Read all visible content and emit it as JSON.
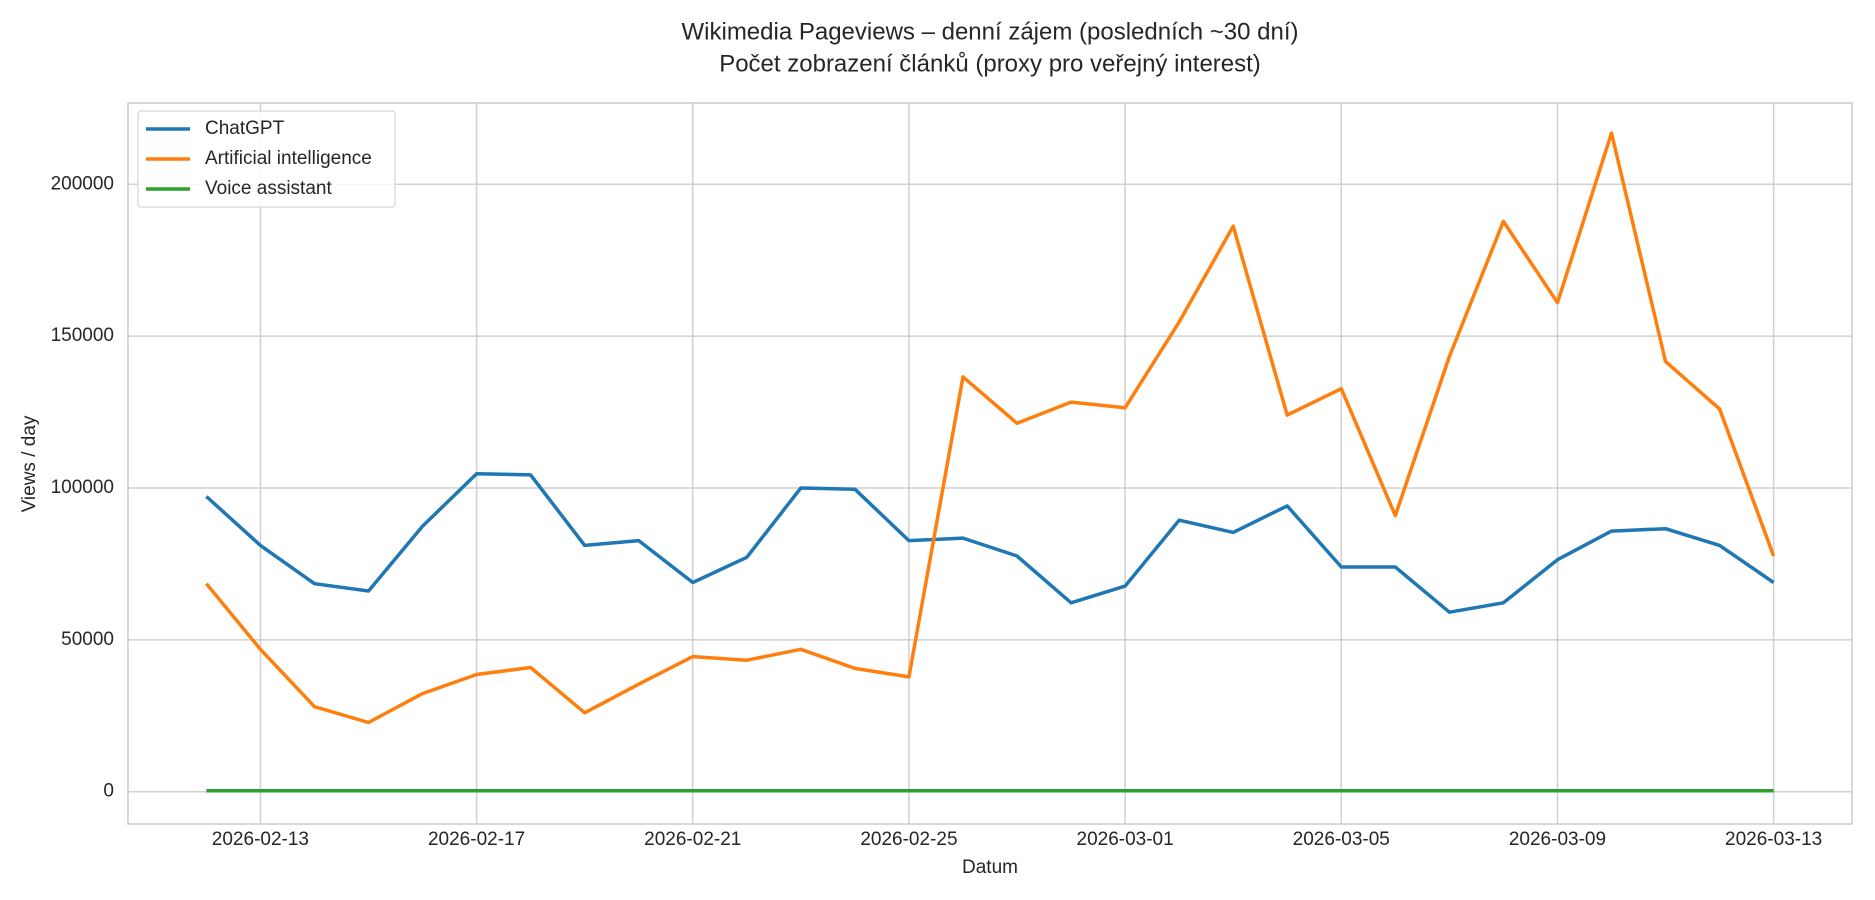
{
  "chart_data": {
    "type": "line",
    "title": "Wikimedia Pageviews – denní zájem (posledních ~30 dní)",
    "subtitle": "Počet zobrazení článků (proxy pro veřejný interest)",
    "x_label": "Datum",
    "y_label": "Views / day",
    "x": [
      "2026-02-12",
      "2026-02-13",
      "2026-02-14",
      "2026-02-15",
      "2026-02-16",
      "2026-02-17",
      "2026-02-18",
      "2026-02-19",
      "2026-02-20",
      "2026-02-21",
      "2026-02-22",
      "2026-02-23",
      "2026-02-24",
      "2026-02-25",
      "2026-02-26",
      "2026-02-27",
      "2026-02-28",
      "2026-03-01",
      "2026-03-02",
      "2026-03-03",
      "2026-03-04",
      "2026-03-05",
      "2026-03-06",
      "2026-03-07",
      "2026-03-08",
      "2026-03-09",
      "2026-03-10",
      "2026-03-11",
      "2026-03-12",
      "2026-03-13"
    ],
    "series": [
      {
        "name": "ChatGPT",
        "color": "#1f77b4",
        "values": [
          97200,
          81100,
          68500,
          66100,
          87400,
          104700,
          104300,
          81100,
          82700,
          68900,
          77200,
          100000,
          99600,
          82700,
          83500,
          77600,
          62200,
          67700,
          89400,
          85400,
          94100,
          74000,
          74000,
          59100,
          62200,
          76400,
          85800,
          86600,
          81100,
          68900
        ]
      },
      {
        "name": "Artificial intelligence",
        "color": "#ff7f0e",
        "values": [
          68500,
          46900,
          28000,
          22800,
          32300,
          38600,
          40900,
          26000,
          35400,
          44500,
          43300,
          46900,
          40600,
          37800,
          136600,
          121300,
          128300,
          126400,
          154700,
          186200,
          124000,
          132700,
          90900,
          143300,
          187800,
          161000,
          216900,
          141700,
          126000,
          77600
        ]
      },
      {
        "name": "Voice assistant",
        "color": "#2ca02c",
        "values": [
          300,
          300,
          300,
          300,
          300,
          300,
          300,
          300,
          300,
          300,
          300,
          300,
          300,
          300,
          300,
          300,
          300,
          300,
          300,
          300,
          300,
          300,
          300,
          300,
          300,
          300,
          300,
          300,
          300,
          300
        ]
      }
    ],
    "xticks": [
      "2026-02-13",
      "2026-02-17",
      "2026-02-21",
      "2026-02-25",
      "2026-03-01",
      "2026-03-05",
      "2026-03-09",
      "2026-03-13"
    ],
    "ylim": [
      -10630,
      226770
    ],
    "yticks": [
      0,
      50000,
      100000,
      150000,
      200000
    ],
    "grid": true,
    "legend": "upper left"
  }
}
